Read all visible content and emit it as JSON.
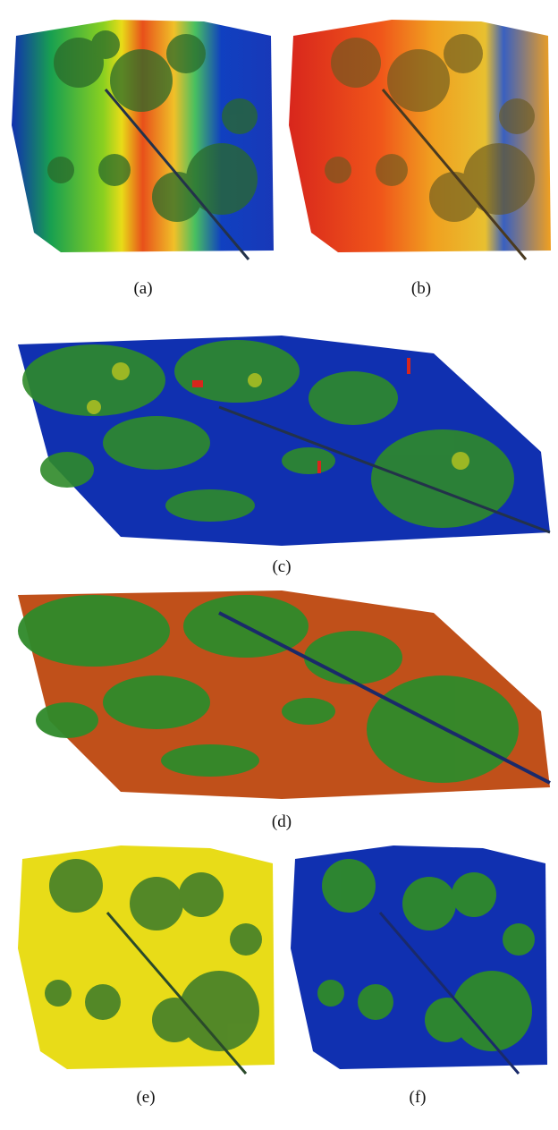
{
  "figure": {
    "panels": [
      {
        "id": "a",
        "caption": "(a)",
        "colormap": "horizontal blue-green-yellow-red-blue"
      },
      {
        "id": "b",
        "caption": "(b)",
        "colormap": "red-orange-yellow-blue"
      },
      {
        "id": "c",
        "caption": "(c)",
        "colormap": "blue ground with green-yellow-red vegetation"
      },
      {
        "id": "d",
        "caption": "(d)",
        "colormap": "orange-red ground with green vegetation"
      },
      {
        "id": "e",
        "caption": "(e)",
        "colormap": "yellow ground with green vegetation"
      },
      {
        "id": "f",
        "caption": "(f)",
        "colormap": "blue ground with green vegetation"
      }
    ],
    "colors": {
      "blue": "#1030b0",
      "green": "#2f8a2a",
      "yellow": "#e8dc18",
      "orange": "#f08a1a",
      "red": "#d8261c",
      "dark_green": "#1f5a2a"
    }
  }
}
